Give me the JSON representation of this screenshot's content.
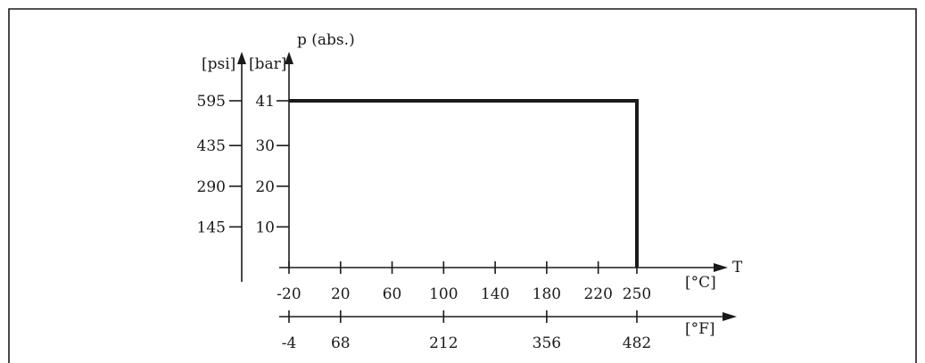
{
  "chart_data": {
    "type": "line",
    "title": "p (abs.)",
    "ylabel_bar": "[bar]",
    "ylabel_psi": "[psi]",
    "xlabel_c": "[°C]",
    "xlabel_f": "[°F]",
    "x_axis_name": "T",
    "x_ticks_c": [
      -20,
      20,
      60,
      100,
      140,
      180,
      220,
      250
    ],
    "x_ticks_f": [
      {
        "f": -4,
        "c": -20
      },
      {
        "f": 68,
        "c": 20
      },
      {
        "f": 212,
        "c": 100
      },
      {
        "f": 356,
        "c": 180
      },
      {
        "f": 482,
        "c": 250
      }
    ],
    "y_ticks": [
      {
        "bar": 10,
        "psi": 145
      },
      {
        "bar": 20,
        "psi": 290
      },
      {
        "bar": 30,
        "psi": 435
      },
      {
        "bar": 41,
        "psi": 595
      }
    ],
    "xlim_c": [
      -20,
      250
    ],
    "ylim_bar": [
      0,
      41
    ],
    "series": [
      {
        "x": [
          -20,
          250,
          250
        ],
        "y": [
          41,
          41,
          0
        ]
      }
    ],
    "grid": false
  }
}
